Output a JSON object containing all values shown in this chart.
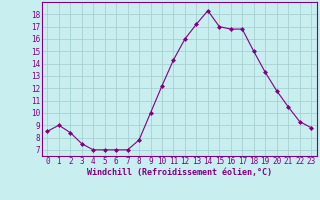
{
  "x": [
    0,
    1,
    2,
    3,
    4,
    5,
    6,
    7,
    8,
    9,
    10,
    11,
    12,
    13,
    14,
    15,
    16,
    17,
    18,
    19,
    20,
    21,
    22,
    23
  ],
  "y": [
    8.5,
    9.0,
    8.4,
    7.5,
    7.0,
    7.0,
    7.0,
    7.0,
    7.8,
    10.0,
    12.2,
    14.3,
    16.0,
    17.2,
    18.3,
    17.0,
    16.8,
    16.8,
    15.0,
    13.3,
    11.8,
    10.5,
    9.3,
    8.8
  ],
  "line_color": "#800080",
  "marker": "D",
  "marker_size": 2.0,
  "bg_color": "#c8eef0",
  "grid_color": "#a0cccc",
  "xlabel": "Windchill (Refroidissement éolien,°C)",
  "xlabel_color": "#800080",
  "tick_color": "#800080",
  "ylim": [
    6.5,
    19.0
  ],
  "xlim": [
    -0.5,
    23.5
  ],
  "yticks": [
    7,
    8,
    9,
    10,
    11,
    12,
    13,
    14,
    15,
    16,
    17,
    18
  ],
  "xticks": [
    0,
    1,
    2,
    3,
    4,
    5,
    6,
    7,
    8,
    9,
    10,
    11,
    12,
    13,
    14,
    15,
    16,
    17,
    18,
    19,
    20,
    21,
    22,
    23
  ],
  "tick_fontsize": 5.5,
  "xlabel_fontsize": 6.0,
  "linewidth": 0.8
}
